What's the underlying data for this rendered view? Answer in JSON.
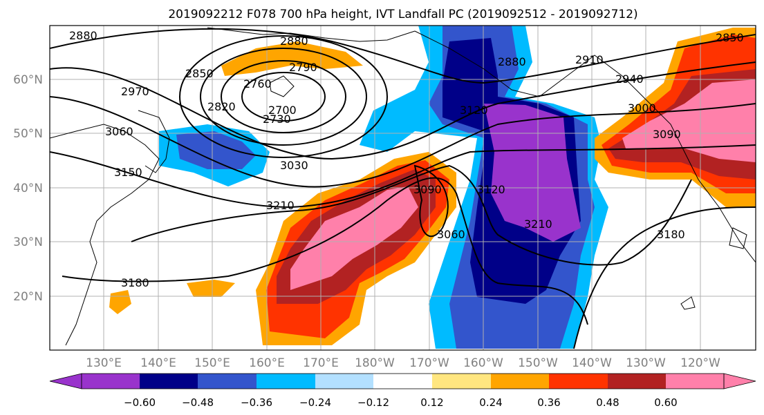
{
  "title": "2019092212 F078 700 hPa height, IVT Landfall PC (2019092512 - 2019092712)",
  "lat_labels": [
    "60°N",
    "50°N",
    "40°N",
    "30°N",
    "20°N"
  ],
  "lon_labels": [
    "130°E",
    "140°E",
    "150°E",
    "160°E",
    "170°E",
    "180°W",
    "170°W",
    "160°W",
    "150°W",
    "140°W",
    "130°W",
    "120°W"
  ],
  "colorbar": {
    "ticks": [
      "−0.60",
      "−0.48",
      "−0.36",
      "−0.24",
      "−0.12",
      "0.12",
      "0.24",
      "0.36",
      "0.48",
      "0.60"
    ],
    "colors": [
      "#9933cc",
      "#000088",
      "#3355cc",
      "#00bbff",
      "#b3e0ff",
      "#ffffff",
      "#ffe680",
      "#ffa500",
      "#ff3300",
      "#b22222",
      "#ff80aa"
    ]
  },
  "contour_labels": [
    "2880",
    "2880",
    "2880",
    "2850",
    "2790",
    "2760",
    "2820",
    "2700",
    "2730",
    "2970",
    "3060",
    "3150",
    "3030",
    "3210",
    "3090",
    "3120",
    "3120",
    "3060",
    "3210",
    "2910",
    "2940",
    "3000",
    "3090",
    "3180",
    "3180",
    "2850"
  ]
}
